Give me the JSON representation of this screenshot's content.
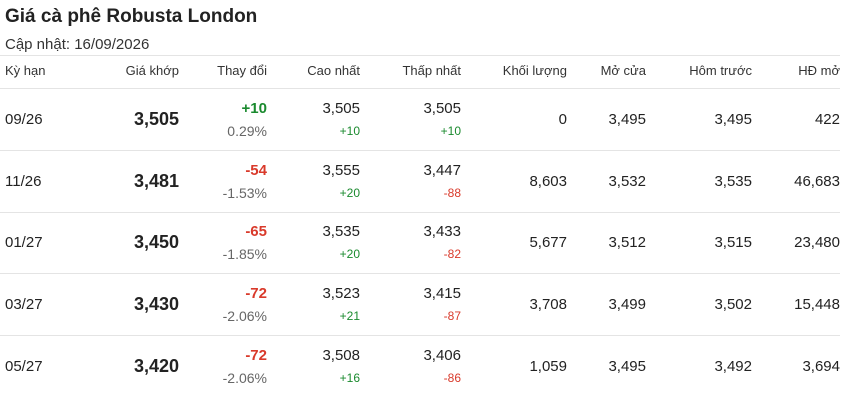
{
  "title": "Giá cà phê Robusta London",
  "updated": "Cập nhật: 16/09/2026",
  "colors": {
    "up": "#1a8a2e",
    "down": "#d93a2b"
  },
  "headers": {
    "term": "Kỳ hạn",
    "price": "Giá khớp",
    "change": "Thay đổi",
    "high": "Cao nhất",
    "low": "Thấp nhất",
    "volume": "Khối lượng",
    "open": "Mở cửa",
    "prev": "Hôm trước",
    "oi": "HĐ mở"
  },
  "rows": [
    {
      "term": "09/26",
      "price": "3,505",
      "change": "+10",
      "change_dir": "up",
      "pct": "0.29%",
      "high": "3,505",
      "high_chg": "+10",
      "high_dir": "up",
      "low": "3,505",
      "low_chg": "+10",
      "low_dir": "up",
      "volume": "0",
      "open": "3,495",
      "prev": "3,495",
      "oi": "422"
    },
    {
      "term": "11/26",
      "price": "3,481",
      "change": "-54",
      "change_dir": "down",
      "pct": "-1.53%",
      "high": "3,555",
      "high_chg": "+20",
      "high_dir": "up",
      "low": "3,447",
      "low_chg": "-88",
      "low_dir": "down",
      "volume": "8,603",
      "open": "3,532",
      "prev": "3,535",
      "oi": "46,683"
    },
    {
      "term": "01/27",
      "price": "3,450",
      "change": "-65",
      "change_dir": "down",
      "pct": "-1.85%",
      "high": "3,535",
      "high_chg": "+20",
      "high_dir": "up",
      "low": "3,433",
      "low_chg": "-82",
      "low_dir": "down",
      "volume": "5,677",
      "open": "3,512",
      "prev": "3,515",
      "oi": "23,480"
    },
    {
      "term": "03/27",
      "price": "3,430",
      "change": "-72",
      "change_dir": "down",
      "pct": "-2.06%",
      "high": "3,523",
      "high_chg": "+21",
      "high_dir": "up",
      "low": "3,415",
      "low_chg": "-87",
      "low_dir": "down",
      "volume": "3,708",
      "open": "3,499",
      "prev": "3,502",
      "oi": "15,448"
    },
    {
      "term": "05/27",
      "price": "3,420",
      "change": "-72",
      "change_dir": "down",
      "pct": "-2.06%",
      "high": "3,508",
      "high_chg": "+16",
      "high_dir": "up",
      "low": "3,406",
      "low_chg": "-86",
      "low_dir": "down",
      "volume": "1,059",
      "open": "3,495",
      "prev": "3,492",
      "oi": "3,694"
    }
  ]
}
